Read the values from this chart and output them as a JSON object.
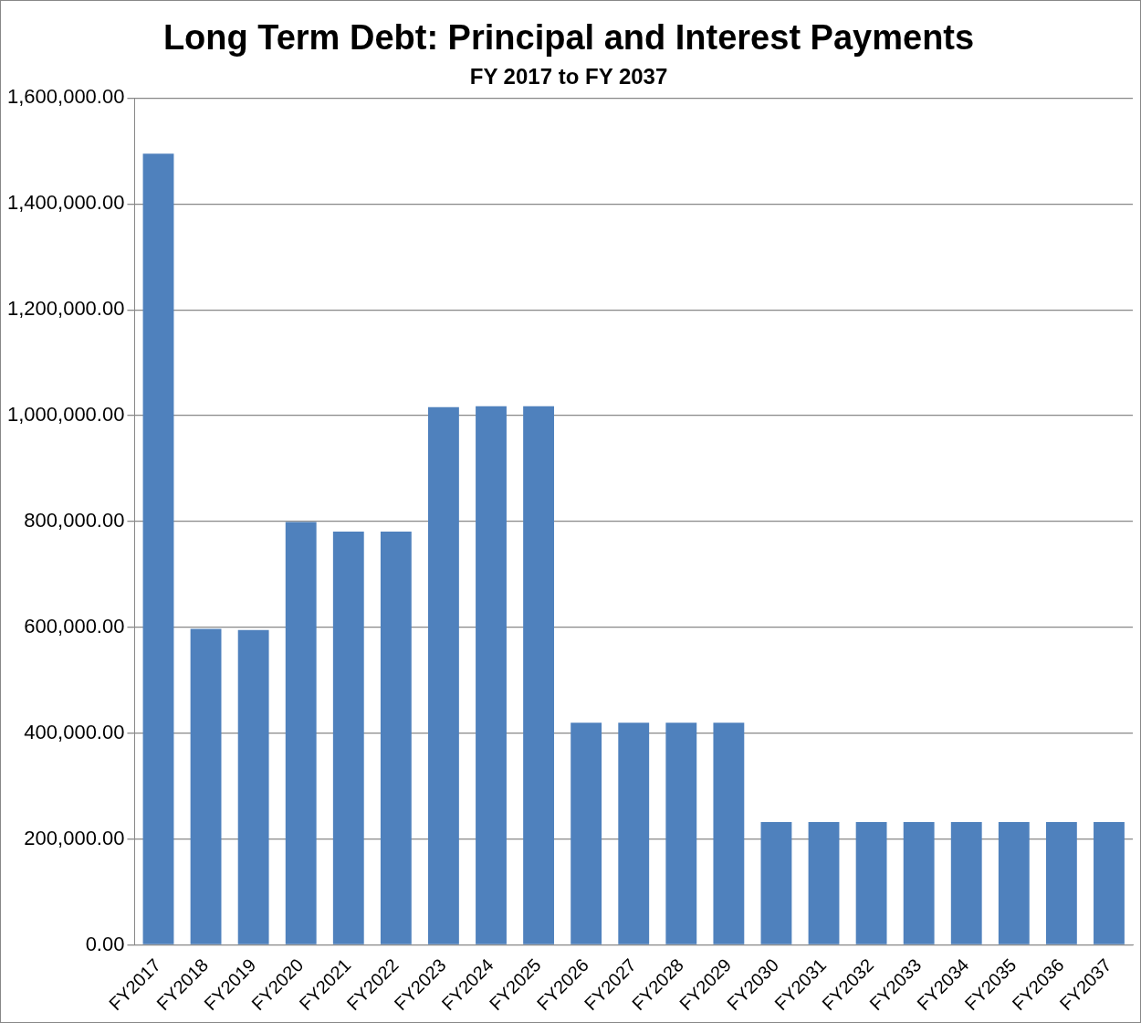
{
  "chart_data": {
    "type": "bar",
    "title": "Long Term Debt: Principal and Interest Payments",
    "subtitle": "FY 2017 to FY 2037",
    "categories": [
      "FY2017",
      "FY2018",
      "FY2019",
      "FY2020",
      "FY2021",
      "FY2022",
      "FY2023",
      "FY2024",
      "FY2025",
      "FY2026",
      "FY2027",
      "FY2028",
      "FY2029",
      "FY2030",
      "FY2031",
      "FY2032",
      "FY2033",
      "FY2034",
      "FY2035",
      "FY2036",
      "FY2037"
    ],
    "values": [
      1495000,
      597000,
      595000,
      799000,
      781000,
      781000,
      1016000,
      1018000,
      1018000,
      420000,
      420000,
      420000,
      420000,
      232000,
      232000,
      232000,
      232000,
      232000,
      232000,
      232000,
      232000
    ],
    "color": "#4f81bd",
    "ylim": [
      0,
      1600000
    ],
    "yticks": [
      {
        "value": 0,
        "label": "0.00"
      },
      {
        "value": 200000,
        "label": "200,000.00"
      },
      {
        "value": 400000,
        "label": "400,000.00"
      },
      {
        "value": 600000,
        "label": "600,000.00"
      },
      {
        "value": 800000,
        "label": "800,000.00"
      },
      {
        "value": 1000000,
        "label": "1,000,000.00"
      },
      {
        "value": 1200000,
        "label": "1,200,000.00"
      },
      {
        "value": 1400000,
        "label": "1,400,000.00"
      },
      {
        "value": 1600000,
        "label": "1,600,000.00"
      }
    ],
    "grid": "y",
    "legend": false
  }
}
